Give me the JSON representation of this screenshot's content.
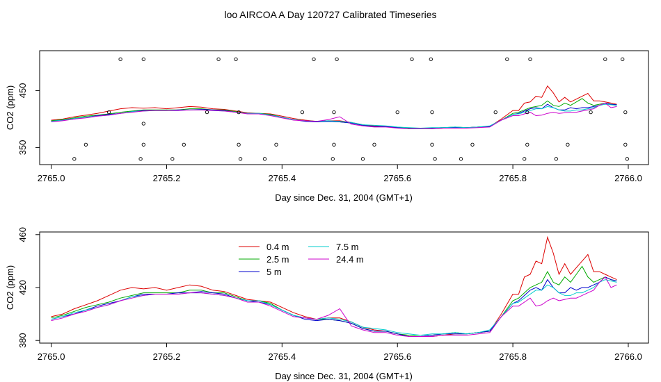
{
  "page_title": "loo AIRCOA A  Day 120727  Calibrated Timeseries",
  "colors": {
    "0.4 m": "#dd0000",
    "2.5 m": "#00aa00",
    "5 m": "#0000cc",
    "7.5 m": "#00cccc",
    "24.4 m": "#cc00cc"
  },
  "chart_data": [
    {
      "type": "scatter",
      "id": "top",
      "title": "",
      "xlabel": "Day since Dec. 31, 2004 (GMT+1)",
      "ylabel": "CO2 (ppm)",
      "xlim": [
        2764.98,
        2766.035
      ],
      "ylim": [
        320,
        520
      ],
      "xticks": [
        2765.0,
        2765.2,
        2765.4,
        2765.6,
        2765.8,
        2766.0
      ],
      "xtick_labels": [
        "2765.0",
        "2765.2",
        "2765.4",
        "2765.6",
        "2765.8",
        "2766.0"
      ],
      "yticks": [
        350,
        450
      ],
      "ytick_labels": [
        "350",
        "450"
      ],
      "lines_from": "bottom",
      "markers": [
        [
          2765.04,
          330
        ],
        [
          2765.06,
          355
        ],
        [
          2765.1,
          412
        ],
        [
          2765.12,
          505
        ],
        [
          2765.155,
          330
        ],
        [
          2765.16,
          355
        ],
        [
          2765.16,
          392
        ],
        [
          2765.16,
          505
        ],
        [
          2765.21,
          330
        ],
        [
          2765.23,
          355
        ],
        [
          2765.27,
          412
        ],
        [
          2765.29,
          505
        ],
        [
          2765.32,
          505
        ],
        [
          2765.325,
          412
        ],
        [
          2765.325,
          355
        ],
        [
          2765.328,
          330
        ],
        [
          2765.37,
          330
        ],
        [
          2765.39,
          355
        ],
        [
          2765.435,
          412
        ],
        [
          2765.455,
          505
        ],
        [
          2765.488,
          330
        ],
        [
          2765.49,
          355
        ],
        [
          2765.49,
          412
        ],
        [
          2765.495,
          505
        ],
        [
          2765.54,
          330
        ],
        [
          2765.56,
          355
        ],
        [
          2765.6,
          412
        ],
        [
          2765.625,
          505
        ],
        [
          2765.66,
          412
        ],
        [
          2765.66,
          355
        ],
        [
          2765.658,
          505
        ],
        [
          2765.665,
          330
        ],
        [
          2765.71,
          330
        ],
        [
          2765.73,
          355
        ],
        [
          2765.77,
          412
        ],
        [
          2765.79,
          505
        ],
        [
          2765.82,
          330
        ],
        [
          2765.825,
          355
        ],
        [
          2765.825,
          412
        ],
        [
          2765.83,
          505
        ],
        [
          2765.875,
          330
        ],
        [
          2765.895,
          355
        ],
        [
          2765.935,
          412
        ],
        [
          2765.96,
          505
        ],
        [
          2765.99,
          505
        ],
        [
          2765.995,
          412
        ],
        [
          2765.995,
          355
        ],
        [
          2765.998,
          330
        ]
      ]
    },
    {
      "type": "line",
      "id": "bottom",
      "title": "",
      "xlabel": "Day since Dec. 31, 2004 (GMT+1)",
      "ylabel": "CO2 (ppm)",
      "xlim": [
        2764.98,
        2766.035
      ],
      "ylim": [
        378,
        462
      ],
      "xticks": [
        2765.0,
        2765.2,
        2765.4,
        2765.6,
        2765.8,
        2766.0
      ],
      "xtick_labels": [
        "2765.0",
        "2765.2",
        "2765.4",
        "2765.6",
        "2765.8",
        "2766.0"
      ],
      "yticks": [
        380,
        420,
        460
      ],
      "ytick_labels": [
        "380",
        "420",
        "460"
      ],
      "legend": {
        "position": "top-center",
        "columns": 2
      },
      "x": [
        2765.0,
        2765.02,
        2765.04,
        2765.06,
        2765.08,
        2765.1,
        2765.12,
        2765.14,
        2765.16,
        2765.18,
        2765.2,
        2765.22,
        2765.24,
        2765.26,
        2765.28,
        2765.3,
        2765.32,
        2765.34,
        2765.36,
        2765.38,
        2765.4,
        2765.42,
        2765.44,
        2765.46,
        2765.48,
        2765.5,
        2765.52,
        2765.54,
        2765.56,
        2765.58,
        2765.6,
        2765.62,
        2765.64,
        2765.66,
        2765.68,
        2765.7,
        2765.72,
        2765.74,
        2765.76,
        2765.78,
        2765.8,
        2765.81,
        2765.82,
        2765.83,
        2765.84,
        2765.85,
        2765.86,
        2765.87,
        2765.88,
        2765.89,
        2765.9,
        2765.91,
        2765.92,
        2765.93,
        2765.94,
        2765.95,
        2765.96,
        2765.97,
        2765.98
      ],
      "series": [
        {
          "name": "0.4 m",
          "values": [
            398,
            400,
            404,
            407,
            410,
            414,
            418,
            420,
            419,
            420,
            418,
            420,
            422,
            421,
            418,
            417,
            414,
            411,
            410,
            409,
            405,
            401,
            398,
            396,
            397,
            397,
            394,
            390,
            388,
            387,
            385,
            383,
            383,
            383,
            384,
            385,
            385,
            386,
            387,
            400,
            415,
            415,
            428,
            430,
            440,
            438,
            458,
            446,
            430,
            438,
            430,
            435,
            440,
            445,
            432,
            432,
            430,
            428,
            426
          ]
        },
        {
          "name": "2.5 m",
          "values": [
            397,
            399,
            402,
            405,
            407,
            409,
            412,
            414,
            416,
            416,
            416,
            416,
            418,
            418,
            416,
            416,
            413,
            410,
            410,
            408,
            403,
            399,
            397,
            396,
            396,
            395,
            393,
            389,
            387,
            387,
            385,
            384,
            383,
            384,
            385,
            386,
            385,
            386,
            387,
            398,
            410,
            412,
            416,
            420,
            422,
            424,
            432,
            424,
            422,
            428,
            424,
            430,
            436,
            428,
            424,
            426,
            428,
            426,
            425
          ]
        },
        {
          "name": "5 m",
          "values": [
            396,
            398,
            400,
            403,
            406,
            408,
            410,
            413,
            415,
            415,
            415,
            416,
            416,
            417,
            416,
            415,
            412,
            410,
            409,
            407,
            403,
            399,
            396,
            395,
            396,
            395,
            393,
            389,
            387,
            387,
            385,
            383,
            383,
            384,
            385,
            385,
            385,
            386,
            387,
            398,
            408,
            410,
            414,
            418,
            420,
            418,
            426,
            420,
            416,
            416,
            420,
            418,
            420,
            420,
            422,
            424,
            428,
            426,
            425
          ]
        },
        {
          "name": "7.5 m",
          "values": [
            396,
            398,
            401,
            403,
            405,
            407,
            410,
            413,
            414,
            415,
            415,
            415,
            416,
            416,
            415,
            414,
            412,
            410,
            410,
            407,
            403,
            399,
            397,
            396,
            397,
            396,
            394,
            390,
            389,
            388,
            386,
            385,
            384,
            385,
            385,
            386,
            385,
            386,
            388,
            398,
            408,
            409,
            412,
            415,
            418,
            418,
            422,
            420,
            416,
            414,
            414,
            416,
            416,
            418,
            420,
            424,
            426,
            425,
            424
          ]
        },
        {
          "name": "24.4 m",
          "values": [
            395,
            397,
            400,
            402,
            405,
            407,
            410,
            412,
            414,
            415,
            415,
            415,
            416,
            416,
            415,
            414,
            412,
            409,
            409,
            406,
            402,
            398,
            397,
            396,
            399,
            404,
            391,
            388,
            386,
            386,
            384,
            383,
            383,
            383,
            384,
            384,
            384,
            385,
            386,
            398,
            406,
            406,
            409,
            412,
            406,
            407,
            410,
            412,
            410,
            411,
            412,
            412,
            414,
            416,
            418,
            424,
            428,
            420,
            422
          ]
        }
      ]
    }
  ]
}
